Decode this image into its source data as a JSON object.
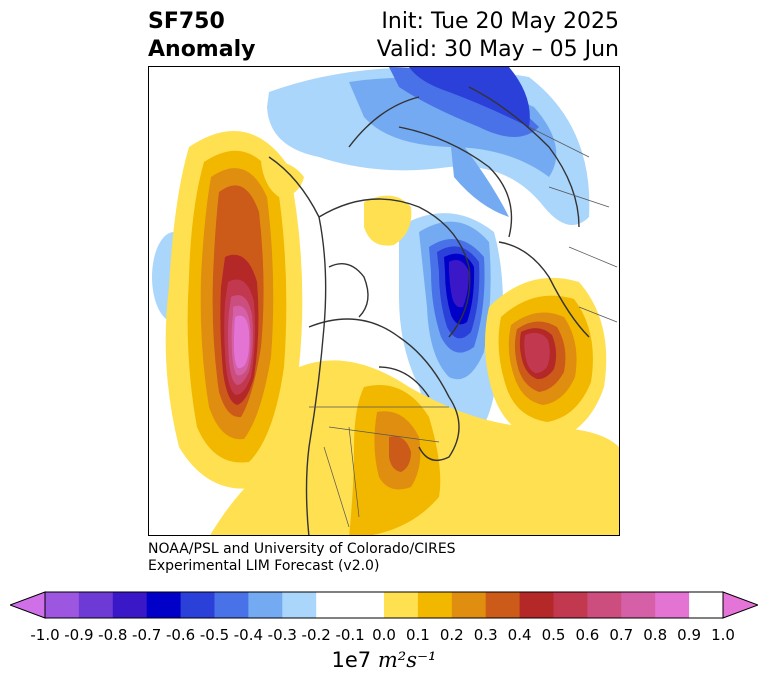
{
  "title": {
    "left_line1": "SF750",
    "left_line2": "Anomaly",
    "right_line1": "Init: Tue 20 May 2025",
    "right_line2": "Valid: 30 May – 05 Jun"
  },
  "credit": {
    "line1": "NOAA/PSL and University of Colorado/CIRES",
    "line2": "Experimental LIM Forecast (v2.0)"
  },
  "colorbar": {
    "tick_labels": [
      "-1.0",
      "-0.9",
      "-0.8",
      "-0.7",
      "-0.6",
      "-0.5",
      "-0.4",
      "-0.3",
      "-0.2",
      "-0.1",
      "0.0",
      "0.1",
      "0.2",
      "0.3",
      "0.4",
      "0.5",
      "0.6",
      "0.7",
      "0.8",
      "0.9",
      "1.0"
    ],
    "colors": [
      "#9c56e0",
      "#6e3ad6",
      "#3a18c8",
      "#0000c8",
      "#2a40d8",
      "#4a72e8",
      "#74aaf2",
      "#aad6fb",
      "#ffffff",
      "#ffffff",
      "#ffe050",
      "#f2b800",
      "#e08e10",
      "#cc5a18",
      "#b42828",
      "#c2384e",
      "#cc4e7e",
      "#d660a8",
      "#e474d4"
    ],
    "extend_low_color": "#d070e8",
    "extend_high_color": "#e474d8",
    "units_prefix": "1e7",
    "units_math": "m²s⁻¹"
  }
}
